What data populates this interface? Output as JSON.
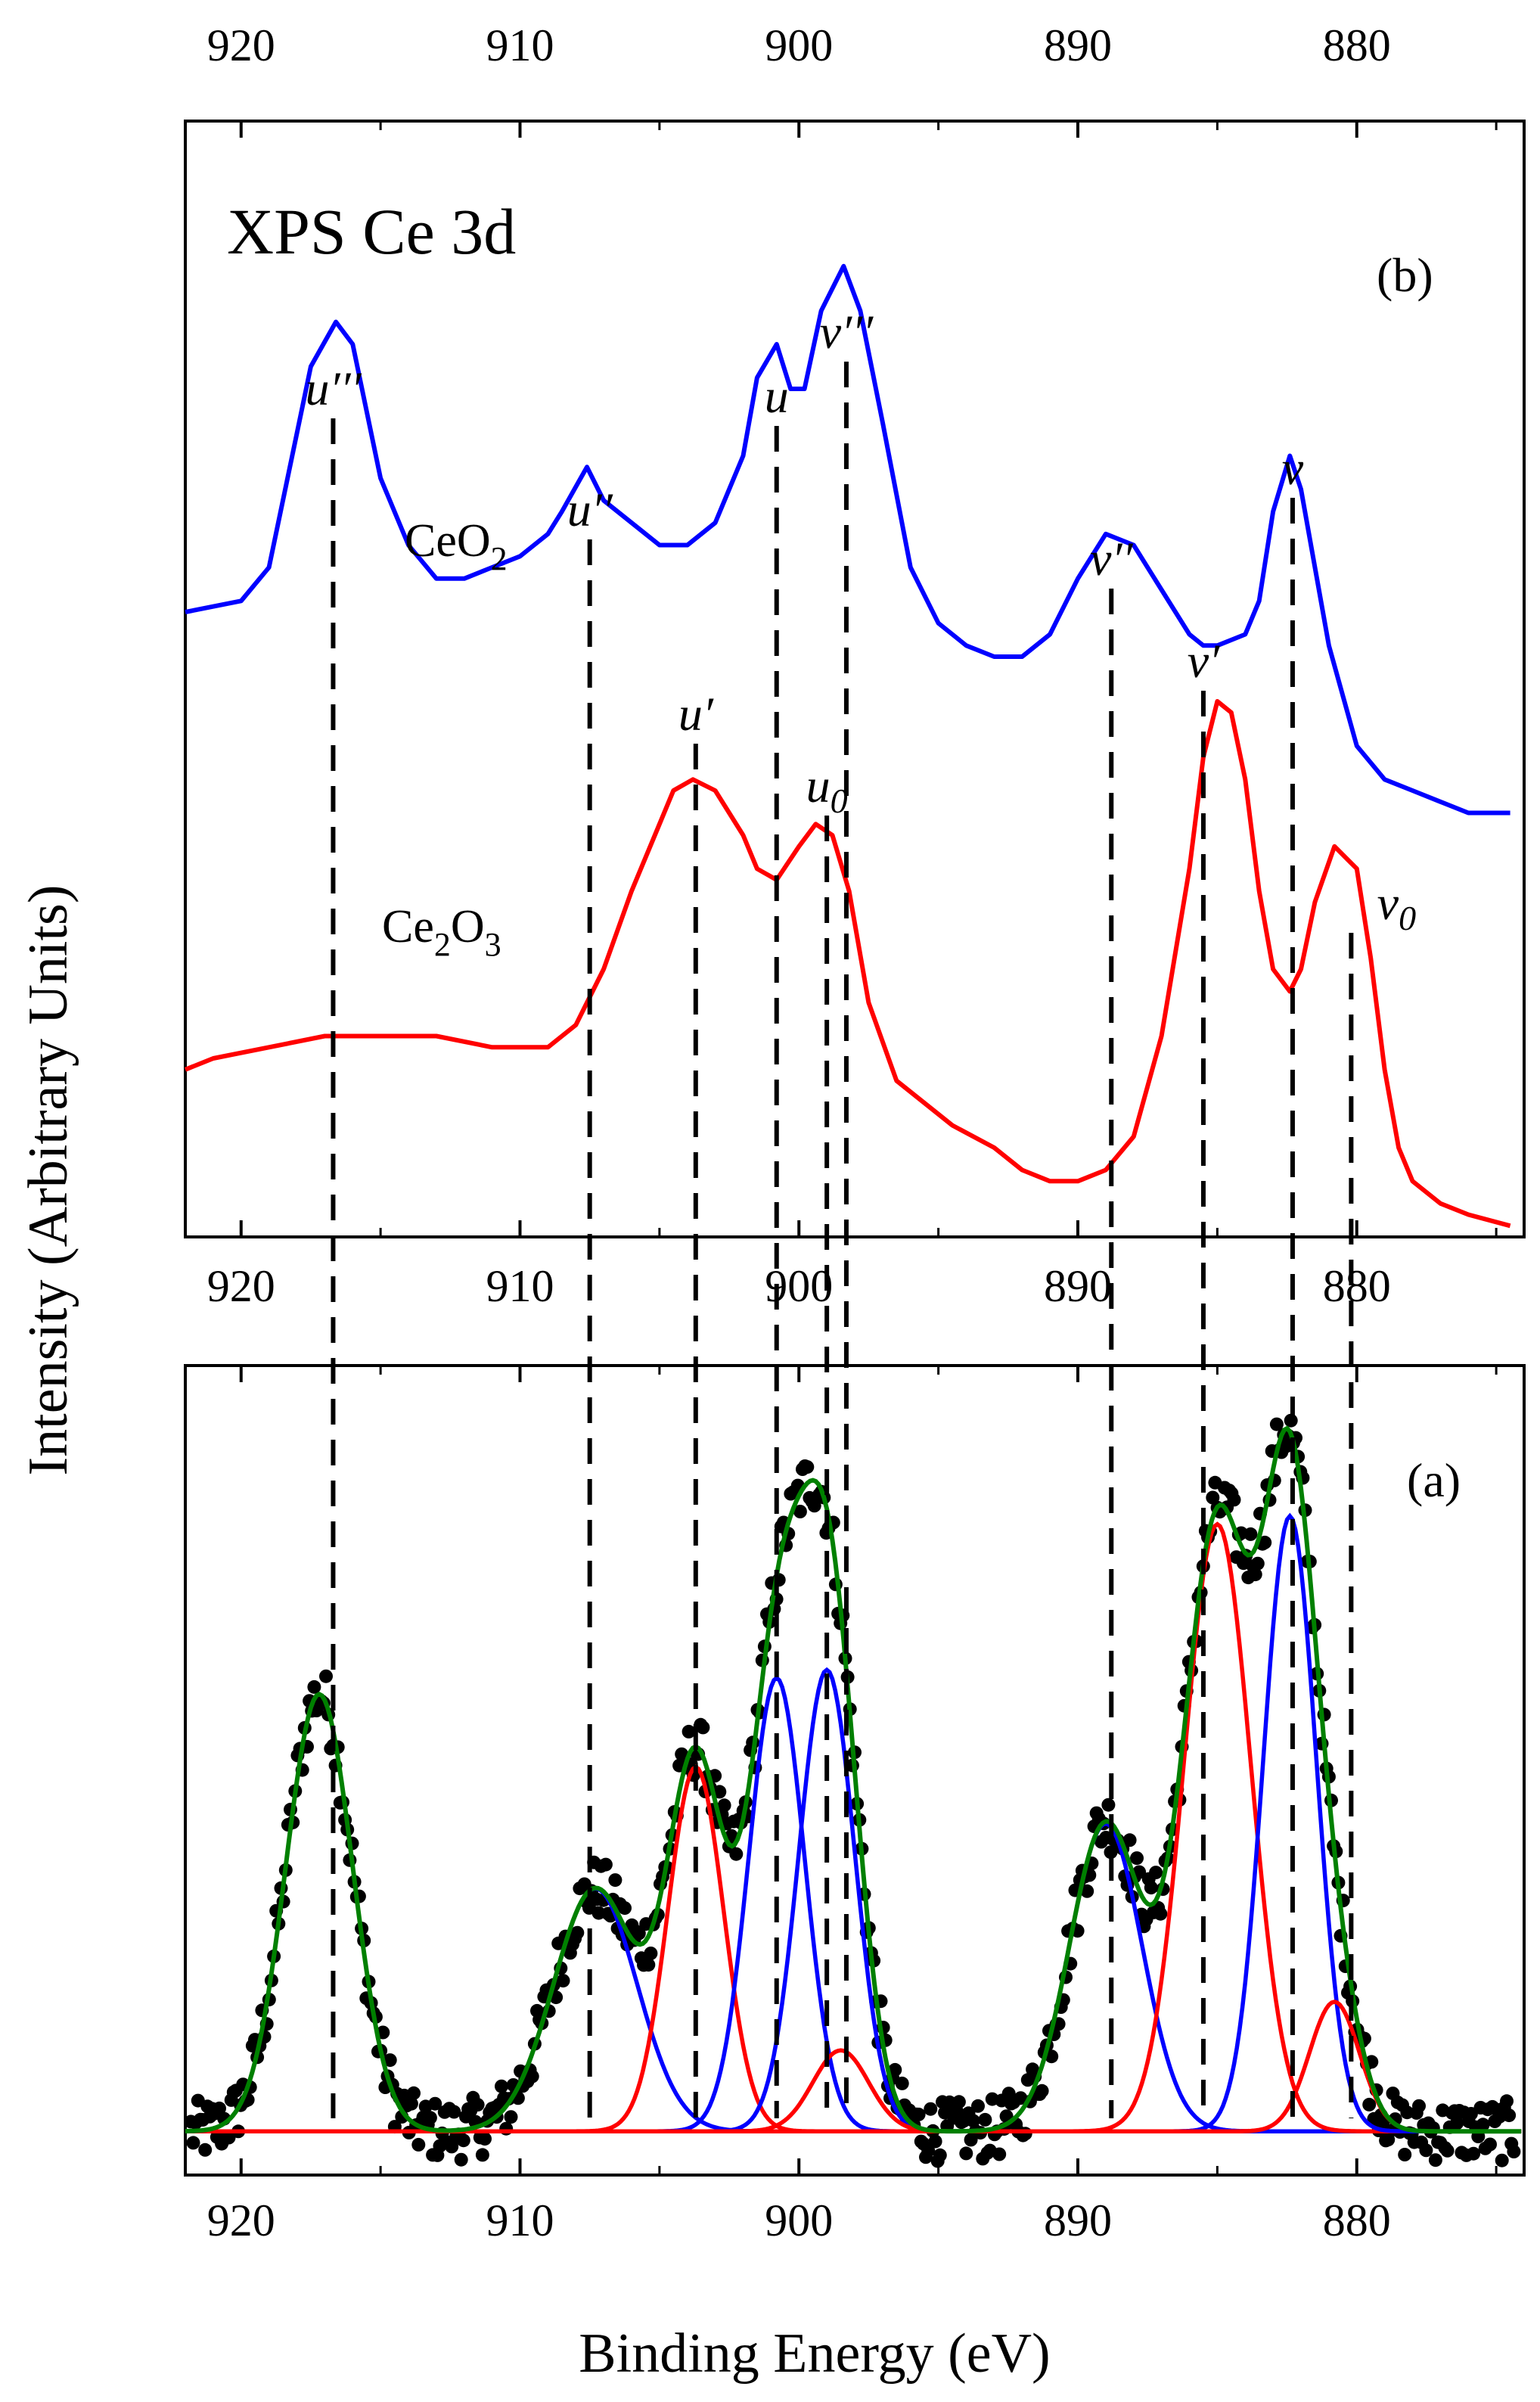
{
  "chart_data": [
    {
      "panel": "b",
      "type": "line",
      "title": "XPS Ce 3d",
      "panel_label": "(b)",
      "xlabel": "Binding Energy (eV)",
      "ylabel": "Intensity (Arbitrary Units)",
      "xlim": [
        922,
        874
      ],
      "ylim": [
        0,
        1
      ],
      "x_reversed": true,
      "xticks": [
        "920",
        "910",
        "900",
        "890",
        "880"
      ],
      "top_xticks": [
        "920",
        "910",
        "900",
        "890",
        "880"
      ],
      "series": [
        {
          "name": "CeO2",
          "label_main": "CeO",
          "label_sub": "2",
          "color": "#0000ff",
          "x": [
            922,
            920,
            919,
            917.5,
            916.6,
            916,
            915,
            914,
            913,
            912,
            911,
            910,
            909,
            908.5,
            907.6,
            907,
            906,
            905,
            904,
            903,
            902,
            901.5,
            900.8,
            900.3,
            899.8,
            899.2,
            898.4,
            897.8,
            897,
            896,
            895,
            894,
            893,
            892,
            891,
            890,
            889,
            888,
            887,
            886,
            885.5,
            885,
            884,
            883.5,
            883,
            882.4,
            882,
            881,
            880,
            879,
            878,
            877,
            876,
            874.5
          ],
          "values": [
            0.56,
            0.57,
            0.6,
            0.78,
            0.82,
            0.8,
            0.68,
            0.62,
            0.59,
            0.59,
            0.6,
            0.61,
            0.63,
            0.65,
            0.69,
            0.66,
            0.64,
            0.62,
            0.62,
            0.64,
            0.7,
            0.77,
            0.8,
            0.76,
            0.76,
            0.83,
            0.87,
            0.83,
            0.73,
            0.6,
            0.55,
            0.53,
            0.52,
            0.52,
            0.54,
            0.59,
            0.63,
            0.62,
            0.58,
            0.54,
            0.53,
            0.53,
            0.54,
            0.57,
            0.65,
            0.7,
            0.67,
            0.53,
            0.44,
            0.41,
            0.4,
            0.39,
            0.38,
            0.38
          ]
        },
        {
          "name": "Ce2O3",
          "label_main": "Ce",
          "label_sub1": "2",
          "label_mid": "O",
          "label_sub2": "3",
          "color": "#ff0000",
          "x": [
            922,
            921,
            919,
            917,
            915,
            913,
            911,
            909,
            908,
            907,
            906,
            905,
            904.5,
            903.8,
            903,
            902,
            901.5,
            900.8,
            900,
            899.4,
            898.8,
            898.2,
            897.5,
            896.5,
            895.5,
            894.5,
            893,
            892,
            891,
            890,
            889,
            888,
            887,
            886,
            885.5,
            885,
            884.5,
            884,
            883.5,
            883,
            882.4,
            882,
            881.5,
            880.8,
            880,
            879.5,
            879,
            878.5,
            878,
            877,
            876,
            874.5
          ],
          "values": [
            0.15,
            0.16,
            0.17,
            0.18,
            0.18,
            0.18,
            0.17,
            0.17,
            0.19,
            0.24,
            0.31,
            0.37,
            0.4,
            0.41,
            0.4,
            0.36,
            0.33,
            0.32,
            0.35,
            0.37,
            0.36,
            0.31,
            0.21,
            0.14,
            0.12,
            0.1,
            0.08,
            0.06,
            0.05,
            0.05,
            0.06,
            0.09,
            0.18,
            0.33,
            0.43,
            0.48,
            0.47,
            0.41,
            0.31,
            0.24,
            0.22,
            0.24,
            0.3,
            0.35,
            0.33,
            0.25,
            0.15,
            0.08,
            0.05,
            0.03,
            0.02,
            0.01
          ]
        }
      ]
    },
    {
      "panel": "a",
      "type": "scatter",
      "panel_label": "(a)",
      "xlabel": "Binding Energy (eV)",
      "ylabel": "Intensity (Arbitrary Units)",
      "xlim": [
        922,
        874
      ],
      "ylim": [
        0,
        1
      ],
      "x_reversed": true,
      "xticks": [
        "920",
        "910",
        "900",
        "890",
        "880"
      ],
      "baseline": 0.054,
      "peaks_u": [
        {
          "center": 917.2,
          "height": 0.54,
          "sigma": 1.2,
          "color": "#008000"
        },
        {
          "center": 907.3,
          "height": 0.3,
          "sigma": 1.5,
          "color": "#0000ff"
        },
        {
          "center": 903.7,
          "height": 0.45,
          "sigma": 1.0,
          "color": "#ff0000"
        },
        {
          "center": 900.8,
          "height": 0.56,
          "sigma": 1.0,
          "color": "#0000ff"
        },
        {
          "center": 899.0,
          "height": 0.57,
          "sigma": 1.0,
          "color": "#0000ff"
        },
        {
          "center": 898.5,
          "height": 0.1,
          "sigma": 1.0,
          "color": "#ff0000"
        },
        {
          "center": 889.0,
          "height": 0.38,
          "sigma": 1.3,
          "color": "#0000ff"
        },
        {
          "center": 885.0,
          "height": 0.75,
          "sigma": 1.2,
          "color": "#ff0000"
        },
        {
          "center": 882.4,
          "height": 0.76,
          "sigma": 0.95,
          "color": "#0000ff"
        },
        {
          "center": 880.8,
          "height": 0.16,
          "sigma": 0.9,
          "color": "#ff0000"
        }
      ],
      "envelope_color": "#008000",
      "data_color": "#000000",
      "data_note": "experimental points follow the green envelope with scatter"
    }
  ],
  "peak_markers": [
    {
      "label": "u'''",
      "energy": 916.7
    },
    {
      "label": "u''",
      "energy": 907.5
    },
    {
      "label": "u'",
      "energy": 903.7
    },
    {
      "label": "u",
      "energy": 900.8
    },
    {
      "label": "u0",
      "energy": 899.0
    },
    {
      "label": "v'''",
      "energy": 898.3
    },
    {
      "label": "v''",
      "energy": 888.8
    },
    {
      "label": "v'",
      "energy": 885.5
    },
    {
      "label": "v",
      "energy": 882.3
    },
    {
      "label": "v0",
      "energy": 880.2
    }
  ]
}
